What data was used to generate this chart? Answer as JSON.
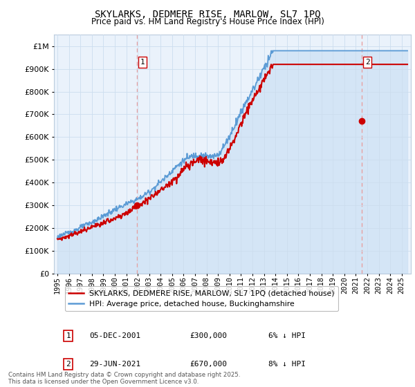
{
  "title": "SKYLARKS, DEDMERE RISE, MARLOW, SL7 1PQ",
  "subtitle": "Price paid vs. HM Land Registry's House Price Index (HPI)",
  "ytick_values": [
    0,
    100000,
    200000,
    300000,
    400000,
    500000,
    600000,
    700000,
    800000,
    900000,
    1000000
  ],
  "ylim": [
    0,
    1050000
  ],
  "xlim_start": 1994.7,
  "xlim_end": 2025.8,
  "hpi_color": "#5b9bd5",
  "hpi_fill_color": "#ddeeff",
  "price_color": "#cc0000",
  "vline_color": "#e8a0a0",
  "legend_label_price": "SKYLARKS, DEDMERE RISE, MARLOW, SL7 1PQ (detached house)",
  "legend_label_hpi": "HPI: Average price, detached house, Buckinghamshire",
  "marker1_x": 2001.92,
  "marker1_y": 300000,
  "marker1_label": "1",
  "marker2_x": 2021.5,
  "marker2_y": 670000,
  "marker2_label": "2",
  "annotation1_date": "05-DEC-2001",
  "annotation1_price": "£300,000",
  "annotation1_note": "6% ↓ HPI",
  "annotation2_date": "29-JUN-2021",
  "annotation2_price": "£670,000",
  "annotation2_note": "8% ↓ HPI",
  "footer": "Contains HM Land Registry data © Crown copyright and database right 2025.\nThis data is licensed under the Open Government Licence v3.0.",
  "background_color": "#ffffff",
  "grid_color": "#ccddee"
}
